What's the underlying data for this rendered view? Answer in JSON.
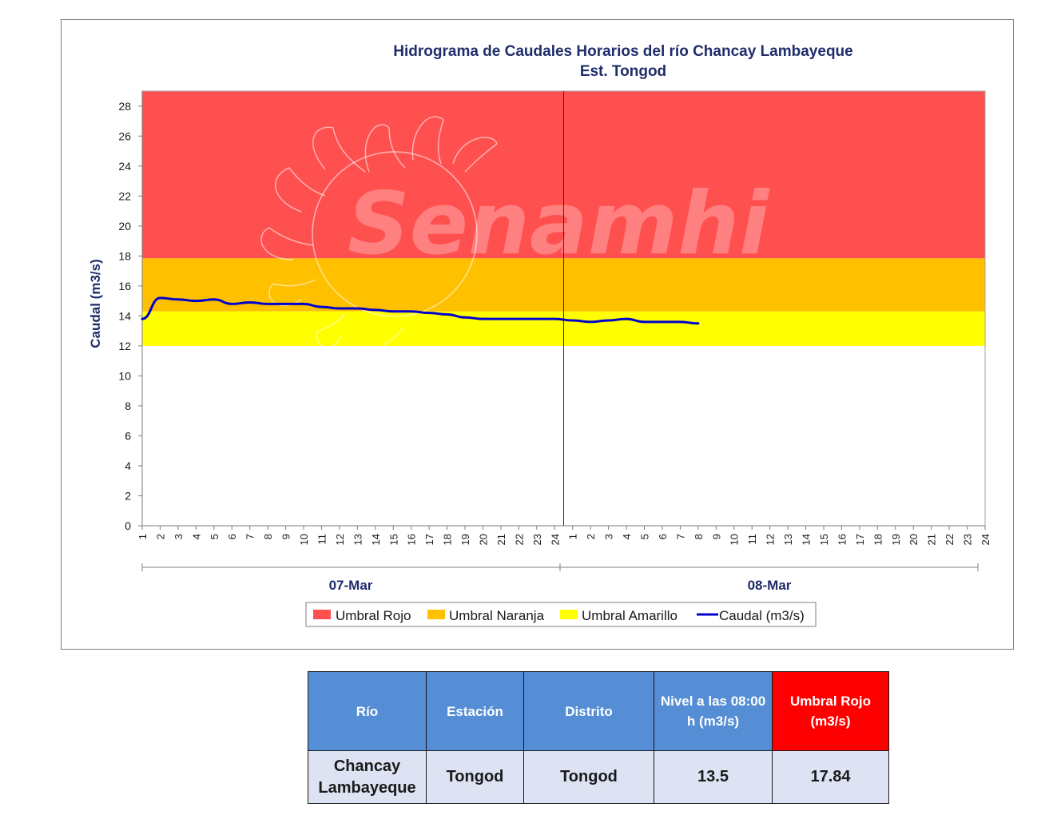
{
  "chart_data": {
    "type": "line",
    "title": [
      "Hidrograma de Caudales Horarios del río Chancay Lambayeque",
      "Est. Tongod"
    ],
    "ylabel": "Caudal (m3/s)",
    "ylim": [
      0,
      29
    ],
    "yticks": [
      0,
      2,
      4,
      6,
      8,
      10,
      12,
      14,
      16,
      18,
      20,
      22,
      24,
      26,
      28
    ],
    "xtick_labels": [
      "1",
      "2",
      "3",
      "4",
      "5",
      "6",
      "7",
      "8",
      "9",
      "10",
      "11",
      "12",
      "13",
      "14",
      "15",
      "16",
      "17",
      "18",
      "19",
      "20",
      "21",
      "22",
      "23",
      "24",
      "1",
      "2",
      "3",
      "4",
      "5",
      "6",
      "7",
      "8",
      "9",
      "10",
      "11",
      "12",
      "13",
      "14",
      "15",
      "16",
      "17",
      "18",
      "19",
      "20",
      "21",
      "22",
      "23",
      "24"
    ],
    "groups": [
      {
        "label": "07-Mar"
      },
      {
        "label": "08-Mar"
      }
    ],
    "thresholds": [
      {
        "name": "Umbral Rojo",
        "from": 17.84,
        "to": 29,
        "color": "#ff5050"
      },
      {
        "name": "Umbral Naranja",
        "from": 14.3,
        "to": 17.84,
        "color": "#ffc000"
      },
      {
        "name": "Umbral Amarillo",
        "from": 12.0,
        "to": 14.3,
        "color": "#ffff00"
      }
    ],
    "series": [
      {
        "name": "Caudal (m3/s)",
        "color": "#0000cc",
        "values": [
          13.8,
          15.2,
          15.1,
          15.0,
          15.1,
          14.8,
          14.9,
          14.8,
          14.8,
          14.8,
          14.6,
          14.5,
          14.5,
          14.4,
          14.3,
          14.3,
          14.2,
          14.1,
          13.9,
          13.8,
          13.8,
          13.8,
          13.8,
          13.8,
          13.7,
          13.6,
          13.7,
          13.8,
          13.6,
          13.6,
          13.6,
          13.5
        ]
      }
    ],
    "watermark": "Senamhi",
    "legend": [
      {
        "label": "Umbral Rojo",
        "kind": "box",
        "color": "#ff5050"
      },
      {
        "label": "Umbral Naranja",
        "kind": "box",
        "color": "#ffc000"
      },
      {
        "label": "Umbral Amarillo",
        "kind": "box",
        "color": "#ffff00"
      },
      {
        "label": "Caudal (m3/s)",
        "kind": "line",
        "color": "#0000cc"
      }
    ],
    "legend_position": "bottom"
  },
  "table": {
    "headers": [
      "Río",
      "Estación",
      "Distrito",
      "Nivel a las 08:00 h (m3/s)",
      "Umbral Rojo (m3/s)"
    ],
    "header_red": "#ff0000",
    "header_blue": "#558ed5",
    "row": [
      "Chancay Lambayeque",
      "Tongod",
      "Tongod",
      "13.5",
      "17.84"
    ]
  }
}
